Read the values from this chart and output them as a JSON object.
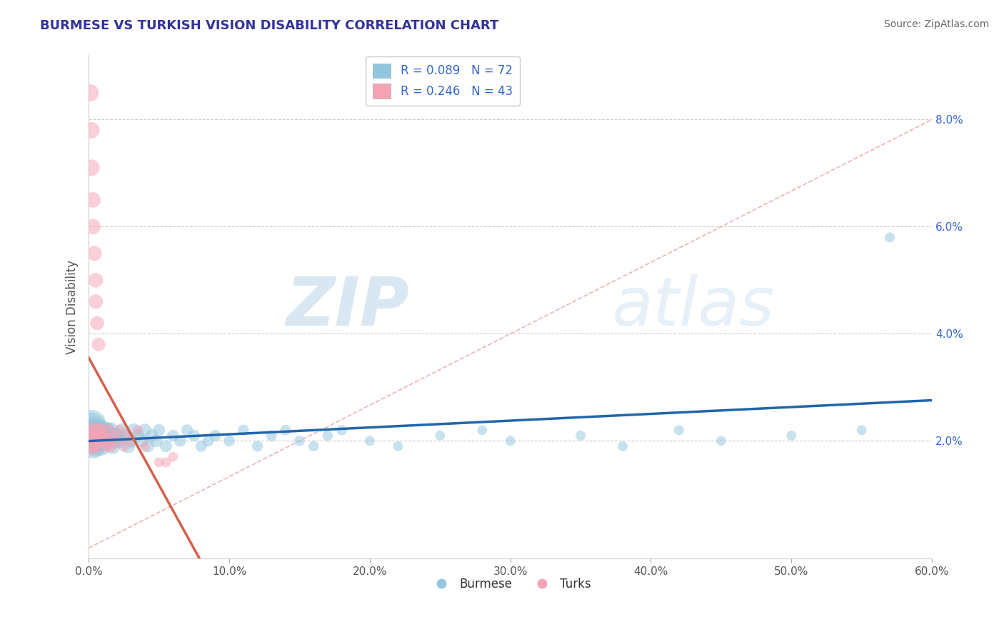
{
  "title": "BURMESE VS TURKISH VISION DISABILITY CORRELATION CHART",
  "source_text": "Source: ZipAtlas.com",
  "ylabel": "Vision Disability",
  "xlim": [
    0.0,
    0.6
  ],
  "ylim": [
    -0.002,
    0.092
  ],
  "xticks": [
    0.0,
    0.1,
    0.2,
    0.3,
    0.4,
    0.5,
    0.6
  ],
  "xticklabels": [
    "0.0%",
    "10.0%",
    "20.0%",
    "30.0%",
    "40.0%",
    "50.0%",
    "60.0%"
  ],
  "yticks": [
    0.02,
    0.04,
    0.06,
    0.08
  ],
  "yticklabels": [
    "2.0%",
    "4.0%",
    "6.0%",
    "8.0%"
  ],
  "watermark": "ZIPatlas",
  "legend_blue_label": "R = 0.089   N = 72",
  "legend_pink_label": "R = 0.246   N = 43",
  "legend_bottom_blue": "Burmese",
  "legend_bottom_pink": "Turks",
  "blue_color": "#92c5de",
  "pink_color": "#f4a3b5",
  "blue_line_color": "#2166ac",
  "pink_line_color": "#d6604d",
  "title_color": "#333399",
  "source_color": "#666666",
  "grid_color": "#cccccc",
  "ref_line_color": "#e8a0a0",
  "burmese_x": [
    0.001,
    0.001,
    0.002,
    0.002,
    0.003,
    0.003,
    0.004,
    0.004,
    0.005,
    0.005,
    0.006,
    0.006,
    0.007,
    0.007,
    0.008,
    0.008,
    0.009,
    0.009,
    0.01,
    0.01,
    0.011,
    0.012,
    0.013,
    0.014,
    0.015,
    0.016,
    0.017,
    0.018,
    0.019,
    0.02,
    0.022,
    0.024,
    0.026,
    0.028,
    0.03,
    0.032,
    0.035,
    0.038,
    0.04,
    0.042,
    0.045,
    0.048,
    0.05,
    0.055,
    0.06,
    0.065,
    0.07,
    0.075,
    0.08,
    0.085,
    0.09,
    0.1,
    0.11,
    0.12,
    0.13,
    0.14,
    0.15,
    0.16,
    0.17,
    0.18,
    0.2,
    0.22,
    0.25,
    0.28,
    0.3,
    0.35,
    0.38,
    0.42,
    0.45,
    0.5,
    0.55,
    0.57
  ],
  "burmese_y": [
    0.021,
    0.022,
    0.02,
    0.023,
    0.019,
    0.022,
    0.021,
    0.02,
    0.022,
    0.019,
    0.021,
    0.02,
    0.022,
    0.021,
    0.02,
    0.022,
    0.019,
    0.021,
    0.02,
    0.022,
    0.021,
    0.02,
    0.022,
    0.021,
    0.02,
    0.022,
    0.019,
    0.021,
    0.02,
    0.021,
    0.02,
    0.022,
    0.021,
    0.019,
    0.02,
    0.022,
    0.021,
    0.02,
    0.022,
    0.019,
    0.021,
    0.02,
    0.022,
    0.019,
    0.021,
    0.02,
    0.022,
    0.021,
    0.019,
    0.02,
    0.021,
    0.02,
    0.022,
    0.019,
    0.021,
    0.022,
    0.02,
    0.019,
    0.021,
    0.022,
    0.02,
    0.019,
    0.021,
    0.022,
    0.02,
    0.021,
    0.019,
    0.022,
    0.02,
    0.021,
    0.022,
    0.058
  ],
  "burmese_size": [
    200,
    250,
    150,
    180,
    120,
    140,
    100,
    110,
    100,
    90,
    90,
    85,
    80,
    80,
    75,
    75,
    70,
    70,
    65,
    65,
    60,
    60,
    55,
    55,
    55,
    50,
    50,
    50,
    45,
    45,
    45,
    40,
    40,
    40,
    38,
    38,
    35,
    35,
    35,
    32,
    32,
    32,
    30,
    30,
    28,
    28,
    28,
    28,
    26,
    26,
    26,
    25,
    25,
    24,
    24,
    24,
    22,
    22,
    22,
    22,
    20,
    20,
    20,
    20,
    20,
    20,
    20,
    20,
    20,
    20,
    20,
    20
  ],
  "turks_x": [
    0.001,
    0.001,
    0.002,
    0.002,
    0.003,
    0.003,
    0.004,
    0.004,
    0.005,
    0.005,
    0.006,
    0.006,
    0.007,
    0.008,
    0.009,
    0.01,
    0.011,
    0.012,
    0.013,
    0.014,
    0.015,
    0.016,
    0.018,
    0.02,
    0.022,
    0.025,
    0.028,
    0.03,
    0.035,
    0.04,
    0.05,
    0.055,
    0.06,
    0.001,
    0.002,
    0.002,
    0.003,
    0.003,
    0.004,
    0.005,
    0.005,
    0.006,
    0.007
  ],
  "turks_y": [
    0.02,
    0.019,
    0.021,
    0.02,
    0.022,
    0.019,
    0.021,
    0.02,
    0.022,
    0.021,
    0.02,
    0.019,
    0.022,
    0.021,
    0.02,
    0.022,
    0.021,
    0.02,
    0.019,
    0.022,
    0.02,
    0.019,
    0.021,
    0.02,
    0.022,
    0.019,
    0.021,
    0.02,
    0.022,
    0.019,
    0.016,
    0.016,
    0.017,
    0.085,
    0.078,
    0.071,
    0.065,
    0.06,
    0.055,
    0.05,
    0.046,
    0.042,
    0.038
  ],
  "turks_size": [
    60,
    55,
    55,
    50,
    50,
    45,
    45,
    42,
    42,
    40,
    40,
    38,
    38,
    35,
    35,
    35,
    32,
    32,
    30,
    30,
    28,
    28,
    26,
    26,
    24,
    24,
    22,
    22,
    20,
    20,
    20,
    20,
    20,
    60,
    55,
    55,
    50,
    48,
    46,
    44,
    42,
    40,
    38
  ],
  "pink_reg_xrange": [
    0.0,
    0.095
  ],
  "blue_reg_xrange": [
    0.0,
    0.6
  ]
}
